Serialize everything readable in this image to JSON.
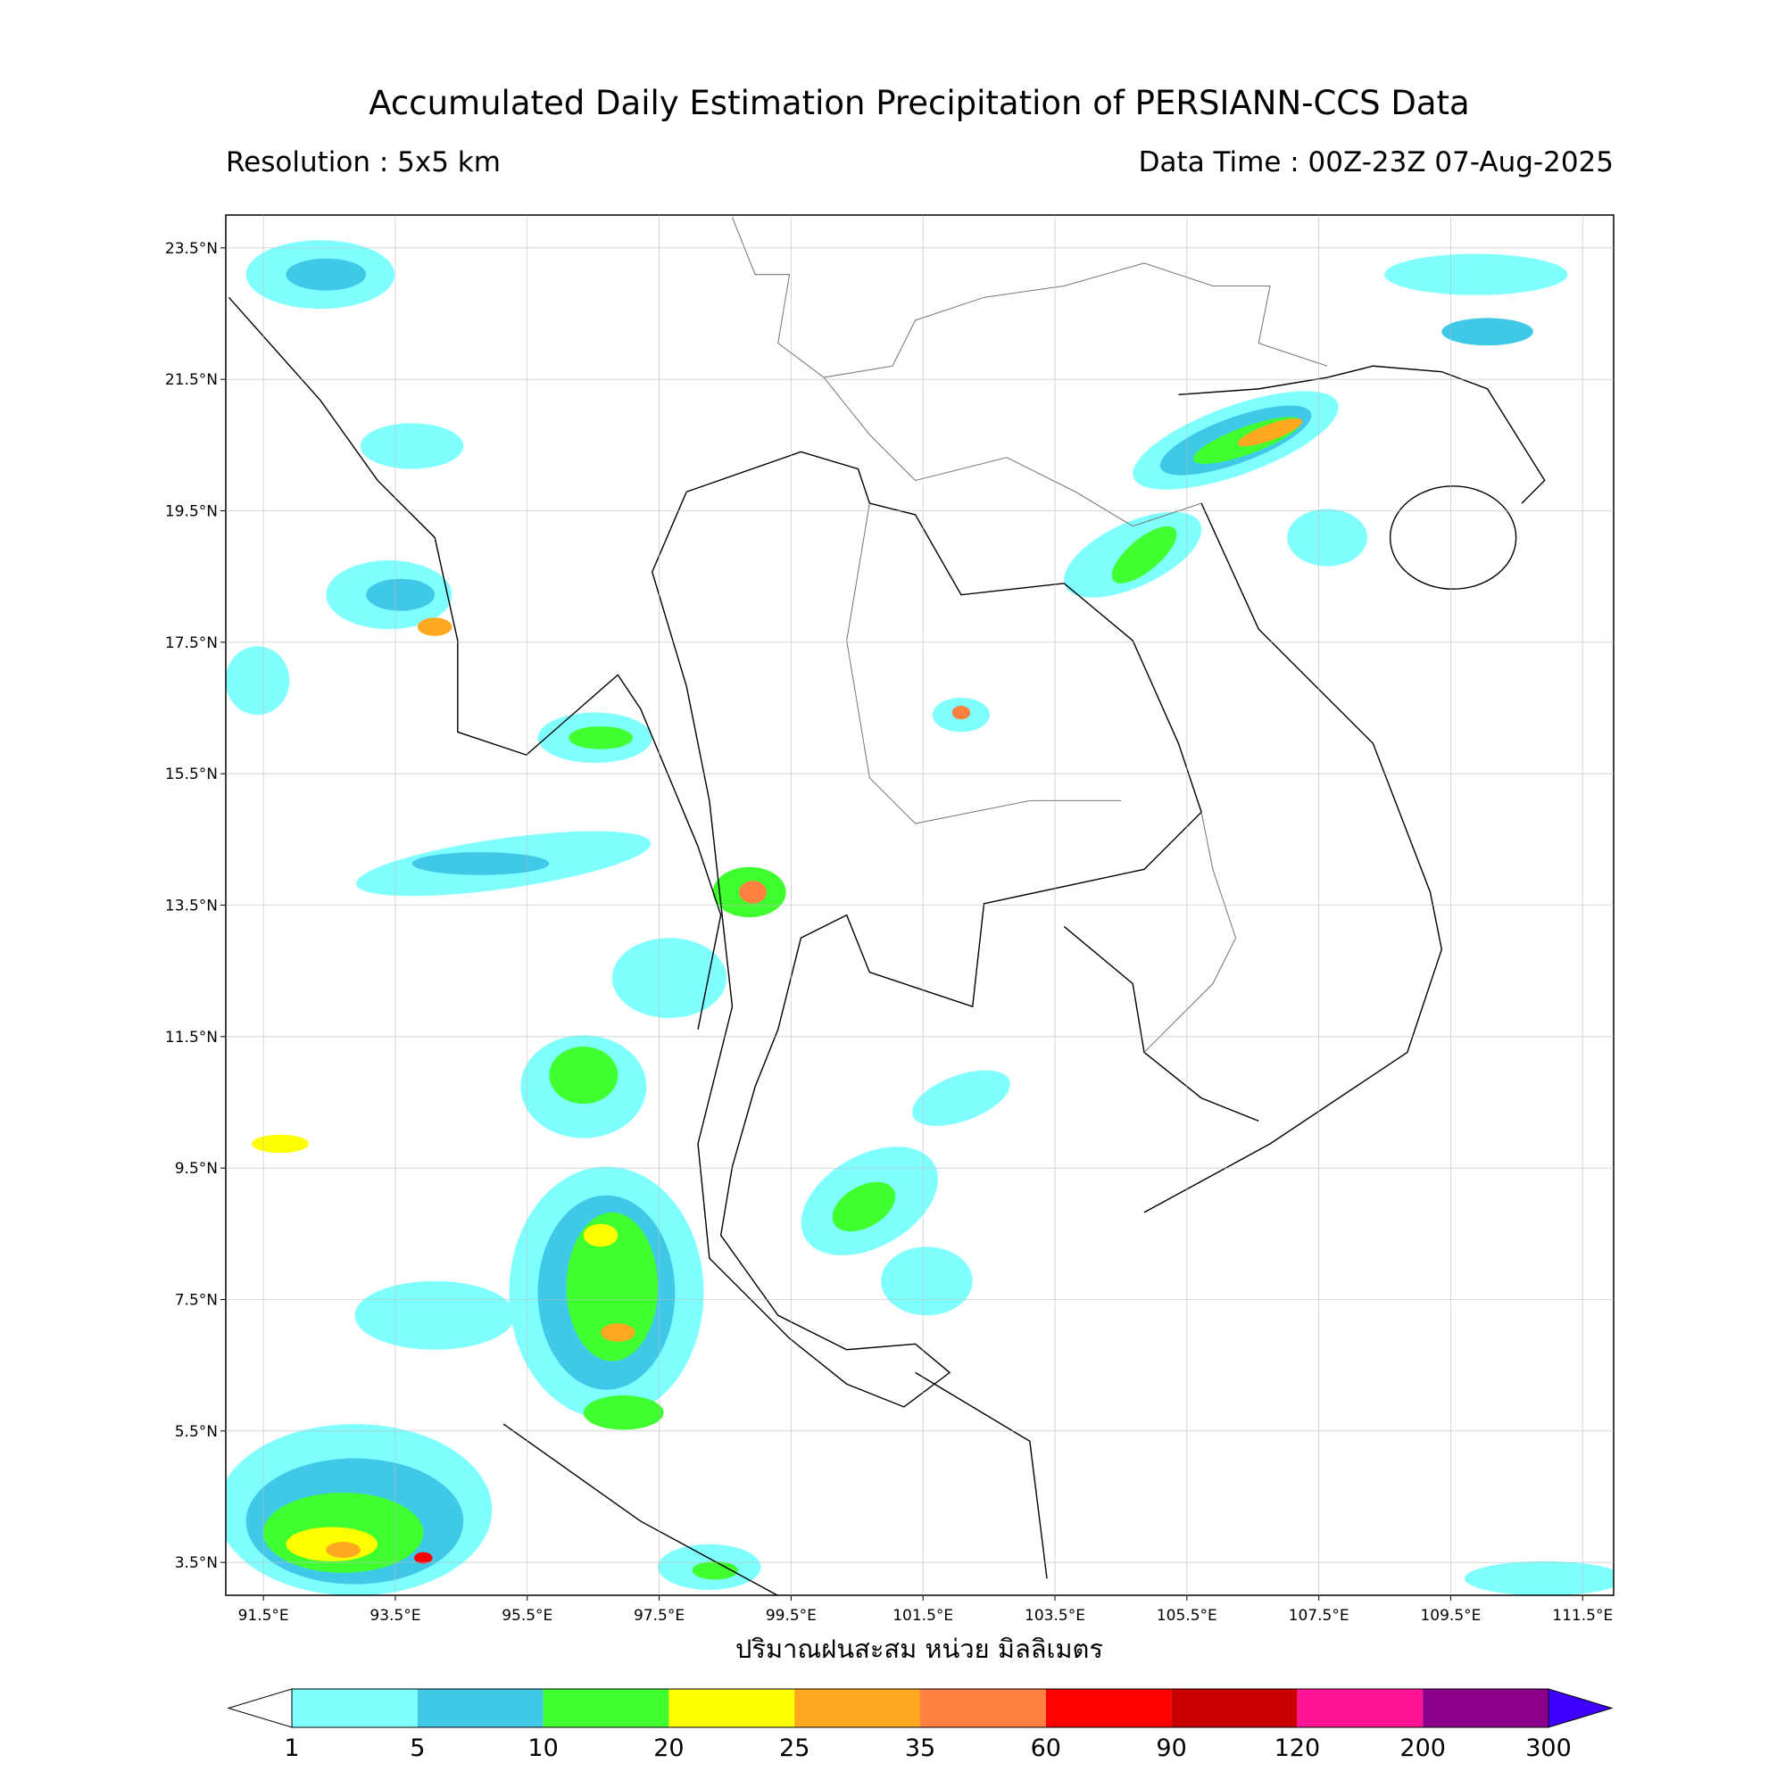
{
  "map": {
    "title": "Accumulated Daily Estimation Precipitation of PERSIANN-CCS Data",
    "resolution": "Resolution : 5x5 km",
    "data_time": "Data Time : 00Z-23Z 07-Aug-2025",
    "axis_label": "ปริมาณฝนสะสม หน่วย มิลลิเมตร",
    "lonlim": [
      90.93,
      111.97
    ],
    "latlim": [
      3.0,
      24.0
    ],
    "grid": true,
    "lon_ticks": [
      {
        "value": 91.5,
        "label": "91.5°E"
      },
      {
        "value": 93.5,
        "label": "93.5°E"
      },
      {
        "value": 95.5,
        "label": "95.5°E"
      },
      {
        "value": 97.5,
        "label": "97.5°E"
      },
      {
        "value": 99.5,
        "label": "99.5°E"
      },
      {
        "value": 101.5,
        "label": "101.5°E"
      },
      {
        "value": 103.5,
        "label": "103.5°E"
      },
      {
        "value": 105.5,
        "label": "105.5°E"
      },
      {
        "value": 107.5,
        "label": "107.5°E"
      },
      {
        "value": 109.5,
        "label": "109.5°E"
      },
      {
        "value": 111.5,
        "label": "111.5°E"
      }
    ],
    "lat_ticks": [
      {
        "value": 23.5,
        "label": "23.5°N"
      },
      {
        "value": 21.5,
        "label": "21.5°N"
      },
      {
        "value": 19.5,
        "label": "19.5°N"
      },
      {
        "value": 17.5,
        "label": "17.5°N"
      },
      {
        "value": 15.5,
        "label": "15.5°N"
      },
      {
        "value": 13.5,
        "label": "13.5°N"
      },
      {
        "value": 11.5,
        "label": "11.5°N"
      },
      {
        "value": 9.5,
        "label": "9.5°N"
      },
      {
        "value": 7.5,
        "label": "7.5°N"
      },
      {
        "value": 5.5,
        "label": "5.5°N"
      },
      {
        "value": 3.5,
        "label": "3.5°N"
      }
    ],
    "colorbar": {
      "levels": [
        1,
        5,
        10,
        20,
        25,
        35,
        60,
        90,
        120,
        200,
        300
      ],
      "colors": [
        "#80ffff",
        "#40c8e8",
        "#40ff30",
        "#ffff00",
        "#ffa820",
        "#ff8040",
        "#ff0000",
        "#c80000",
        "#ff1493",
        "#8b008b"
      ],
      "under_color": "#ffffff",
      "over_color": "#4000ff"
    }
  }
}
